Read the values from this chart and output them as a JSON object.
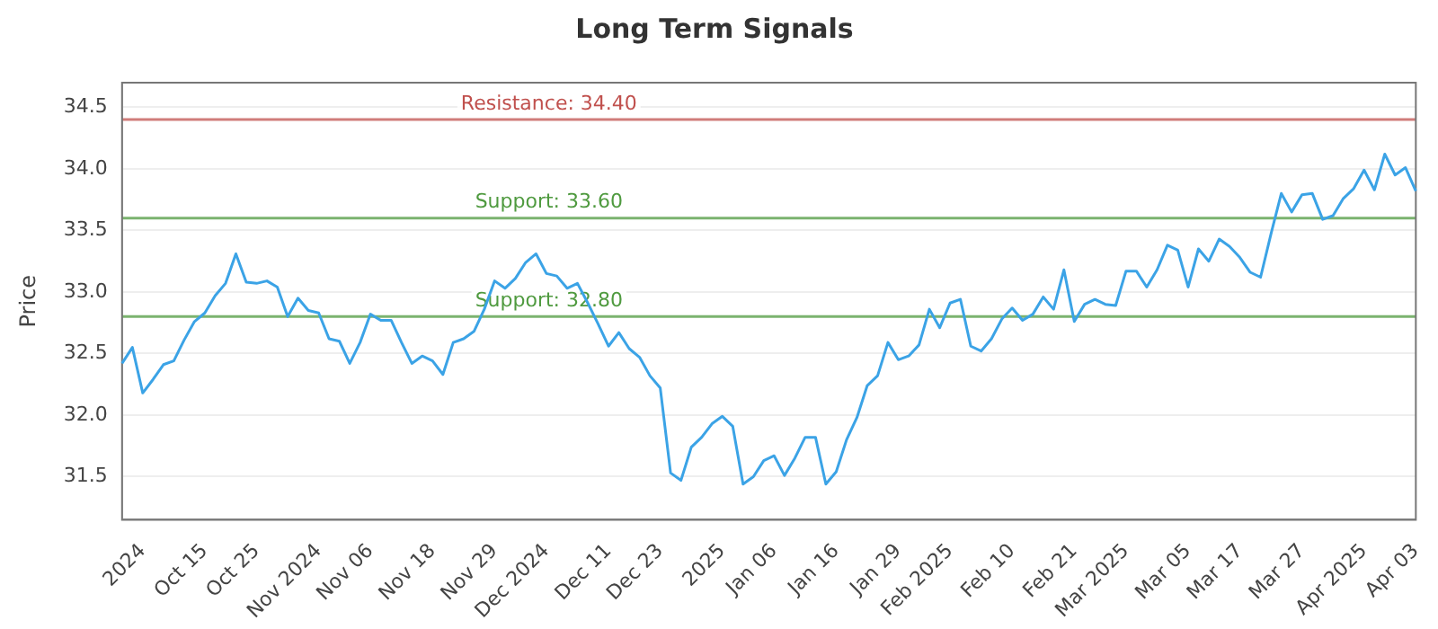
{
  "chart_data": {
    "type": "line",
    "title": "Long Term Signals",
    "ylabel": "Price",
    "categories": [
      null,
      null,
      "2024",
      null,
      null,
      null,
      null,
      null,
      "Oct 15",
      null,
      null,
      null,
      null,
      "Oct 25",
      null,
      null,
      null,
      null,
      null,
      "Nov 2024",
      null,
      null,
      null,
      null,
      "Nov 06",
      null,
      null,
      null,
      null,
      null,
      "Nov 18",
      null,
      null,
      null,
      null,
      null,
      "Nov 29",
      null,
      null,
      null,
      null,
      "Dec 2024",
      null,
      null,
      null,
      null,
      null,
      "Dec 11",
      null,
      null,
      null,
      null,
      "Dec 23",
      null,
      null,
      null,
      null,
      null,
      "2025",
      null,
      null,
      null,
      null,
      "Jan 06",
      null,
      null,
      null,
      null,
      null,
      "Jan 16",
      null,
      null,
      null,
      null,
      null,
      "Jan 29",
      null,
      null,
      null,
      null,
      "Feb 2025",
      null,
      null,
      null,
      null,
      null,
      "Feb 10",
      null,
      null,
      null,
      null,
      null,
      "Feb 21",
      null,
      null,
      null,
      null,
      "Mar 2025",
      null,
      null,
      null,
      null,
      null,
      "Mar 05",
      null,
      null,
      null,
      null,
      "Mar 17",
      null,
      null,
      null,
      null,
      null,
      "Mar 27",
      null,
      null,
      null,
      null,
      null,
      "Apr 2025",
      null,
      null,
      null,
      null,
      "Apr 03"
    ],
    "series": [
      {
        "color": "#3ba3e6",
        "values": [
          32.42,
          32.55,
          32.18,
          32.29,
          32.41,
          32.44,
          32.61,
          32.76,
          32.83,
          32.97,
          33.07,
          33.31,
          33.08,
          33.07,
          33.09,
          33.04,
          32.8,
          32.95,
          32.85,
          32.83,
          32.62,
          32.6,
          32.42,
          32.59,
          32.82,
          32.77,
          32.77,
          32.59,
          32.42,
          32.48,
          32.44,
          32.33,
          32.59,
          32.62,
          32.68,
          32.86,
          33.09,
          33.03,
          33.11,
          33.24,
          33.31,
          33.15,
          33.13,
          33.03,
          33.07,
          32.91,
          32.74,
          32.56,
          32.67,
          32.54,
          32.47,
          32.32,
          32.22,
          31.53,
          31.47,
          31.74,
          31.82,
          31.93,
          31.99,
          31.91,
          31.44,
          31.5,
          31.63,
          31.67,
          31.51,
          31.65,
          31.82,
          31.82,
          31.44,
          31.54,
          31.8,
          31.98,
          32.24,
          32.32,
          32.59,
          32.45,
          32.48,
          32.57,
          32.86,
          32.71,
          32.91,
          32.94,
          32.56,
          32.52,
          32.62,
          32.78,
          32.87,
          32.77,
          32.82,
          32.96,
          32.86,
          33.18,
          32.76,
          32.9,
          32.94,
          32.9,
          32.89,
          33.17,
          33.17,
          33.04,
          33.18,
          33.38,
          33.34,
          33.04,
          33.35,
          33.25,
          33.43,
          33.37,
          33.28,
          33.16,
          33.12,
          33.47,
          33.8,
          33.65,
          33.79,
          33.8,
          33.59,
          33.62,
          33.76,
          33.84,
          33.99,
          33.83,
          34.12,
          33.95,
          34.01,
          33.82
        ]
      }
    ],
    "ylim": [
      31.15,
      34.7
    ],
    "yticks": [
      31.5,
      {
        "value": 32,
        "label": "32.0"
      },
      32.5,
      {
        "value": 33,
        "label": "33.0"
      },
      33.5,
      {
        "value": 34,
        "label": "34.0"
      },
      34.5
    ],
    "grid": "y",
    "legend": false,
    "marker": "none",
    "line_style": "solid",
    "ref_lines": [
      {
        "axis": "y",
        "value": 34.4,
        "label": "Resistance: 34.40",
        "color": "#c0504d"
      },
      {
        "axis": "y",
        "value": 33.6,
        "label": "Support: 33.60",
        "color": "#4f9a3f"
      },
      {
        "axis": "y",
        "value": 32.8,
        "label": "Support: 32.80",
        "color": "#4f9a3f"
      }
    ]
  }
}
